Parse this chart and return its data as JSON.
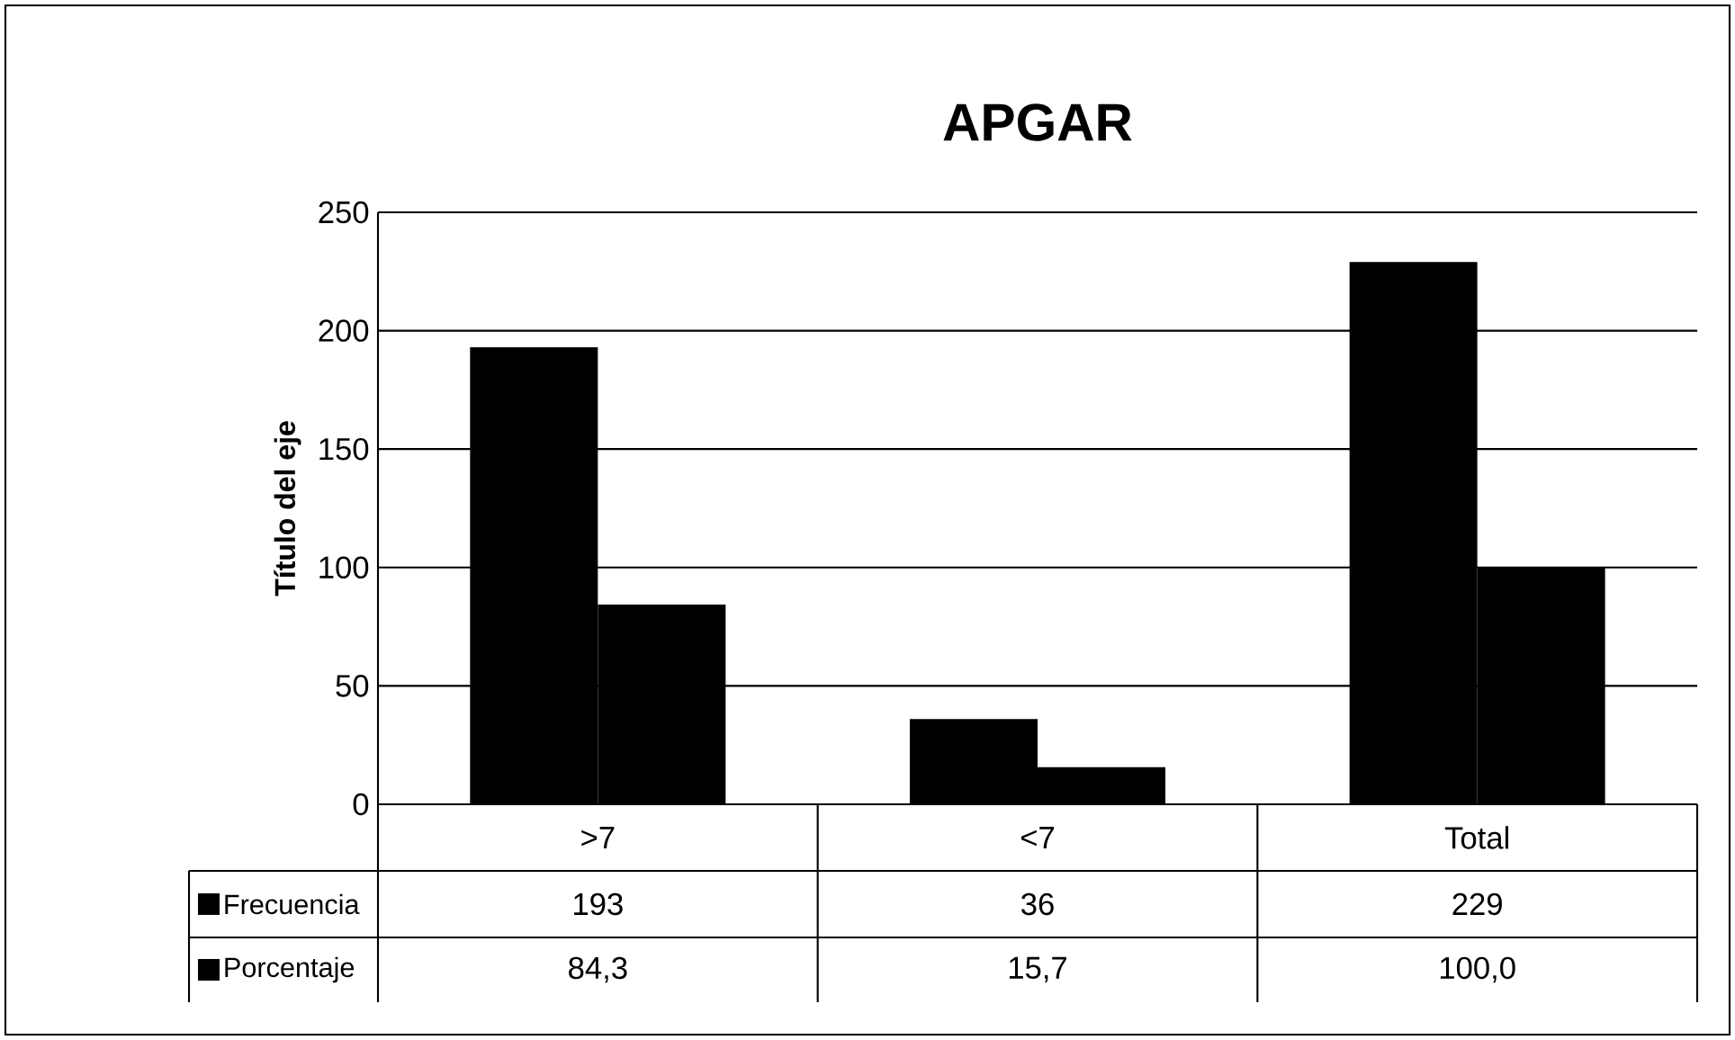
{
  "chart_data": {
    "type": "bar",
    "title": "APGAR",
    "ylabel": "Título del eje",
    "categories": [
      ">7",
      "<7",
      "Total"
    ],
    "series": [
      {
        "name": "Frecuencia",
        "color": "#000000",
        "values": [
          193,
          36,
          229
        ],
        "value_labels": [
          "193",
          "36",
          "229"
        ]
      },
      {
        "name": "Porcentaje",
        "color": "#000000",
        "values": [
          84.3,
          15.7,
          100.0
        ],
        "value_labels": [
          "84,3",
          "15,7",
          "100,0"
        ]
      }
    ],
    "ylim": [
      0,
      250
    ],
    "yticks": [
      0,
      50,
      100,
      150,
      200,
      250
    ],
    "grid": "y",
    "legend": "bottom"
  }
}
